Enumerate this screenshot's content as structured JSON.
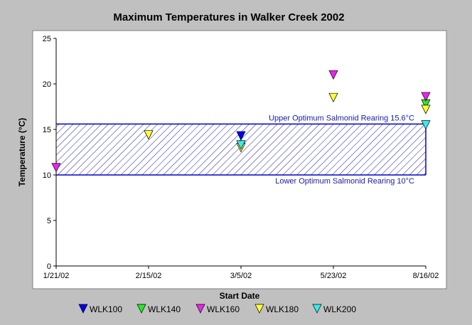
{
  "chart_data": {
    "type": "scatter",
    "title": "Maximum Temperatures in Walker Creek 2002",
    "xlabel": "Start Date",
    "ylabel": "Temperature (°C)",
    "categories": [
      "1/21/02",
      "2/15/02",
      "3/5/02",
      "5/23/02",
      "8/16/02"
    ],
    "yticks": [
      "0",
      "5",
      "10",
      "15",
      "20",
      "25"
    ],
    "ylim": [
      0,
      25
    ],
    "grid": false,
    "legend_position": "bottom",
    "band": {
      "lower": 10,
      "upper": 15.6,
      "upper_label": "Upper Optimum Salmonid Rearing 15.6°C",
      "lower_label": "Lower Optimum Salmonid Rearing 10°C",
      "color": "#0000cc"
    },
    "series": [
      {
        "name": "WLK100",
        "color": "#0000ee",
        "values": [
          null,
          null,
          14.3,
          null,
          null
        ]
      },
      {
        "name": "WLK140",
        "color": "#22ee22",
        "values": [
          null,
          null,
          null,
          null,
          17.8
        ]
      },
      {
        "name": "WLK160",
        "color": "#ee22ee",
        "values": [
          10.8,
          null,
          null,
          21.0,
          18.6
        ]
      },
      {
        "name": "WLK180",
        "color": "#ffff33",
        "values": [
          null,
          14.4,
          13.0,
          18.5,
          17.2
        ]
      },
      {
        "name": "WLK200",
        "color": "#33eeee",
        "values": [
          null,
          null,
          13.3,
          null,
          15.5
        ]
      }
    ]
  }
}
